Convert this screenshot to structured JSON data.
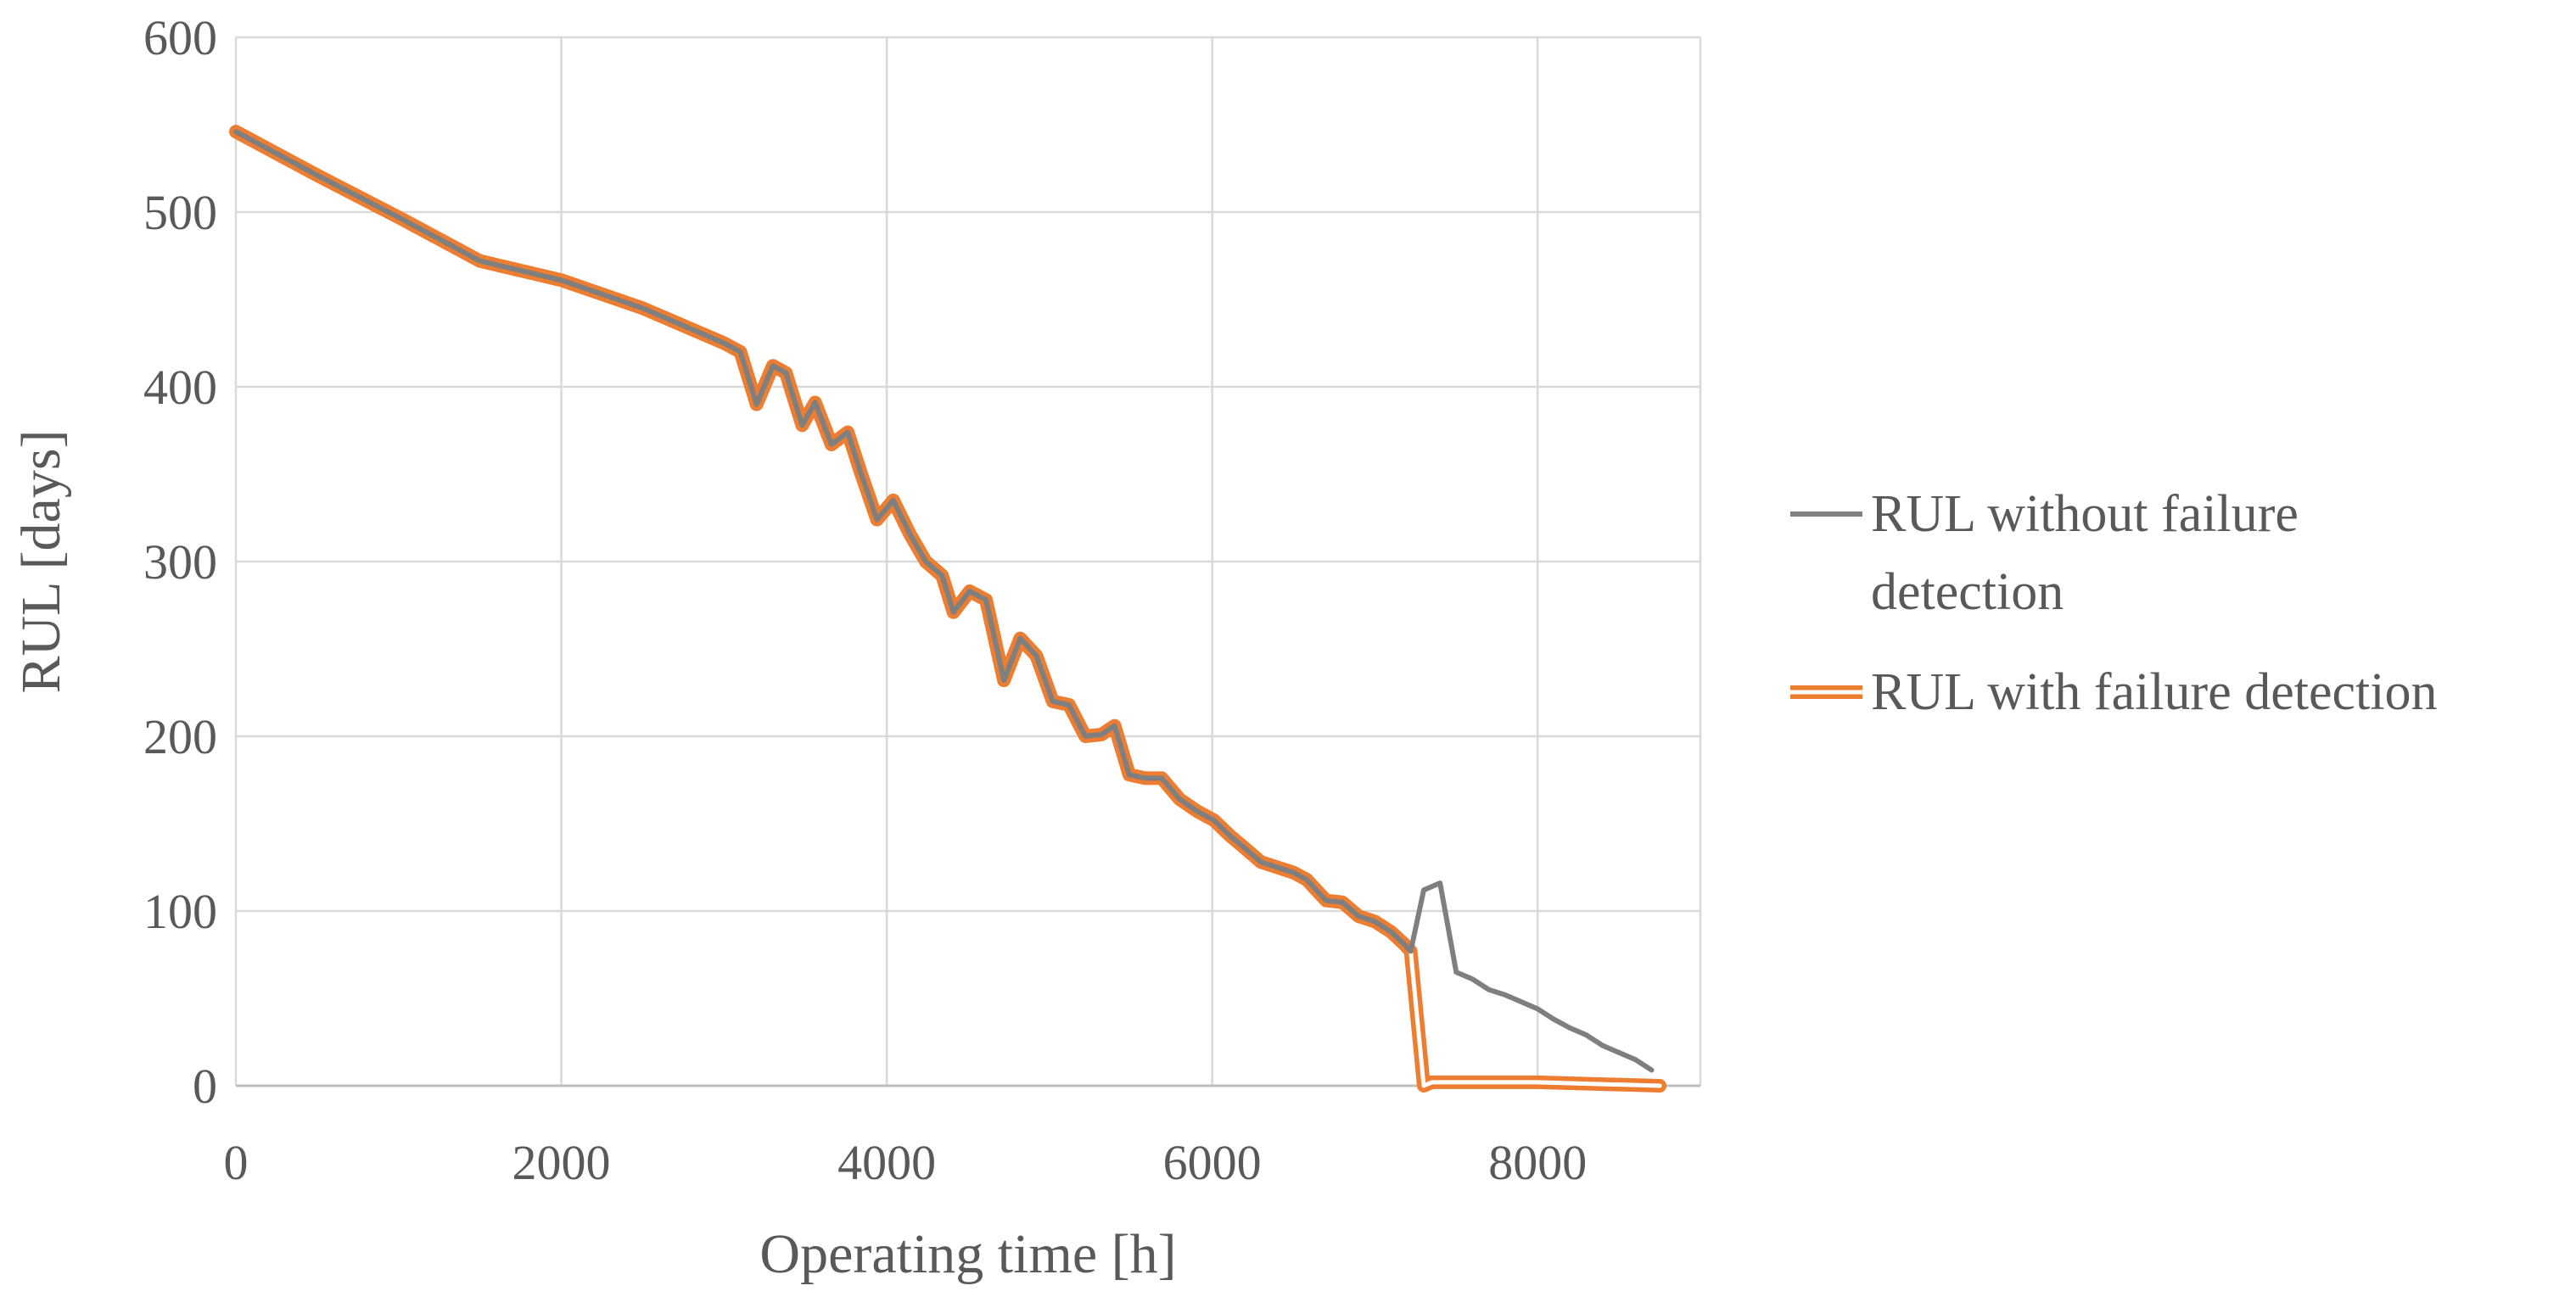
{
  "chart_data": {
    "type": "line",
    "title": "",
    "xlabel": "Operating time [h]",
    "ylabel": "RUL [days]",
    "xlim": [
      0,
      9000
    ],
    "ylim": [
      0,
      600
    ],
    "xticks": [
      0,
      2000,
      4000,
      6000,
      8000
    ],
    "xtick_labels": [
      "0",
      "2000",
      "4000",
      "6000",
      "8000"
    ],
    "yticks": [
      0,
      100,
      200,
      300,
      400,
      500,
      600
    ],
    "ytick_labels": [
      "0",
      "100",
      "200",
      "300",
      "400",
      "500",
      "600"
    ],
    "grid": true,
    "legend_position": "right",
    "series": [
      {
        "name": "RUL without failure detection",
        "legend_lines": [
          "RUL without failure",
          "detection"
        ],
        "color": "#7f7f7f",
        "style": "solid",
        "x": [
          0,
          500,
          1000,
          1500,
          2000,
          2500,
          3000,
          3100,
          3200,
          3300,
          3380,
          3480,
          3560,
          3660,
          3760,
          3840,
          3940,
          4040,
          4140,
          4240,
          4340,
          4410,
          4510,
          4610,
          4720,
          4820,
          4920,
          5020,
          5120,
          5220,
          5320,
          5400,
          5490,
          5590,
          5690,
          5800,
          5910,
          6010,
          6110,
          6200,
          6300,
          6400,
          6500,
          6580,
          6700,
          6800,
          6900,
          7000,
          7100,
          7180,
          7220,
          7300,
          7400,
          7500,
          7600,
          7700,
          7800,
          8000,
          8100,
          8200,
          8300,
          8400,
          8500,
          8600,
          8700
        ],
        "y": [
          546,
          521,
          497,
          472,
          461,
          445,
          425,
          420,
          390,
          412,
          408,
          378,
          391,
          367,
          374,
          351,
          324,
          335,
          316,
          300,
          292,
          271,
          283,
          278,
          232,
          256,
          246,
          220,
          218,
          200,
          201,
          206,
          178,
          176,
          176,
          164,
          157,
          152,
          143,
          136,
          128,
          125,
          122,
          118,
          106,
          105,
          97,
          94,
          88,
          81,
          77,
          112,
          116,
          65,
          61,
          55,
          52,
          44,
          38,
          33,
          29,
          23,
          19,
          15,
          9
        ]
      },
      {
        "name": "RUL with failure detection",
        "legend_lines": [
          "RUL with failure detection"
        ],
        "color": "#ed7d31",
        "style": "double",
        "x": [
          0,
          500,
          1000,
          1500,
          2000,
          2500,
          3000,
          3100,
          3200,
          3300,
          3380,
          3480,
          3560,
          3660,
          3760,
          3840,
          3940,
          4040,
          4140,
          4240,
          4340,
          4410,
          4510,
          4610,
          4720,
          4820,
          4920,
          5020,
          5120,
          5220,
          5320,
          5400,
          5490,
          5590,
          5690,
          5800,
          5910,
          6010,
          6110,
          6200,
          6300,
          6400,
          6500,
          6580,
          6700,
          6800,
          6900,
          7000,
          7100,
          7180,
          7220,
          7300,
          7350,
          8000,
          8750
        ],
        "y": [
          546,
          521,
          497,
          472,
          461,
          445,
          425,
          420,
          390,
          412,
          408,
          378,
          391,
          367,
          374,
          351,
          324,
          335,
          316,
          300,
          292,
          271,
          283,
          278,
          232,
          256,
          246,
          220,
          218,
          200,
          201,
          206,
          178,
          176,
          176,
          164,
          157,
          152,
          143,
          136,
          128,
          125,
          122,
          118,
          106,
          105,
          97,
          94,
          88,
          81,
          77,
          0,
          2,
          2,
          0
        ]
      }
    ]
  }
}
